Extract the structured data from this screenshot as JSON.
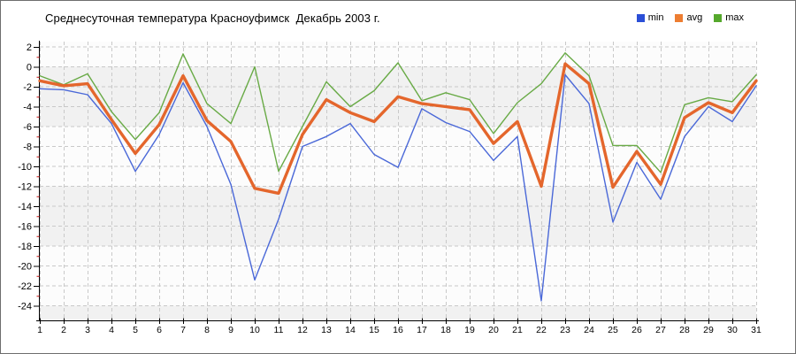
{
  "chart_data": {
    "type": "line",
    "title": "Среднесуточная температура Красноуфимск  Декабрь 2003 г.",
    "xlabel": "",
    "ylabel": "",
    "x": [
      1,
      2,
      3,
      4,
      5,
      6,
      7,
      8,
      9,
      10,
      11,
      12,
      13,
      14,
      15,
      16,
      17,
      18,
      19,
      20,
      21,
      22,
      23,
      24,
      25,
      26,
      27,
      28,
      29,
      30,
      31
    ],
    "ylim": [
      -24,
      2
    ],
    "ytick_step": 2,
    "grid": true,
    "legend_position": "top-right",
    "series": [
      {
        "name": "min",
        "legend_color": "#2b4fd7",
        "line_color": "#4a68d8",
        "width": 1.4,
        "values": [
          -2.2,
          -2.3,
          -2.8,
          -5.7,
          -10.5,
          -6.8,
          -1.6,
          -6.0,
          -11.8,
          -21.4,
          -15.3,
          -8.0,
          -7.0,
          -5.7,
          -8.8,
          -10.1,
          -4.2,
          -5.6,
          -6.5,
          -9.4,
          -7.0,
          -23.5,
          -0.8,
          -3.7,
          -15.6,
          -9.6,
          -13.3,
          -7.0,
          -4.0,
          -5.5,
          -1.9
        ]
      },
      {
        "name": "avg",
        "legend_color": "#ed7d31",
        "line_color": "#e4662c",
        "width": 3.4,
        "values": [
          -1.4,
          -1.9,
          -1.7,
          -5.3,
          -8.7,
          -5.8,
          -0.9,
          -5.4,
          -7.5,
          -12.2,
          -12.7,
          -6.8,
          -3.3,
          -4.6,
          -5.5,
          -3.0,
          -3.7,
          -4.0,
          -4.3,
          -7.7,
          -5.5,
          -12.0,
          0.3,
          -1.7,
          -12.1,
          -8.5,
          -11.8,
          -5.1,
          -3.6,
          -4.6,
          -1.4
        ]
      },
      {
        "name": "max",
        "legend_color": "#55a82c",
        "line_color": "#68aa45",
        "width": 1.4,
        "values": [
          -0.9,
          -1.8,
          -0.7,
          -4.5,
          -7.3,
          -4.6,
          1.3,
          -3.7,
          -5.7,
          0.0,
          -10.5,
          -6.0,
          -1.5,
          -4.0,
          -2.4,
          0.4,
          -3.4,
          -2.6,
          -3.3,
          -6.7,
          -3.6,
          -1.7,
          1.4,
          -0.9,
          -7.9,
          -7.9,
          -10.6,
          -3.8,
          -3.1,
          -3.5,
          -0.8
        ]
      }
    ],
    "stripe_bands": [
      [
        0,
        -6
      ],
      [
        -12,
        -18
      ],
      [
        -24,
        -26
      ]
    ],
    "stripe_color": "#f1f1f1",
    "plot_bg_color": "#fcfcfc",
    "grid_color": "#c9c9c9",
    "axis_color": "#000000",
    "minor_tick_color": "#cc1111"
  }
}
